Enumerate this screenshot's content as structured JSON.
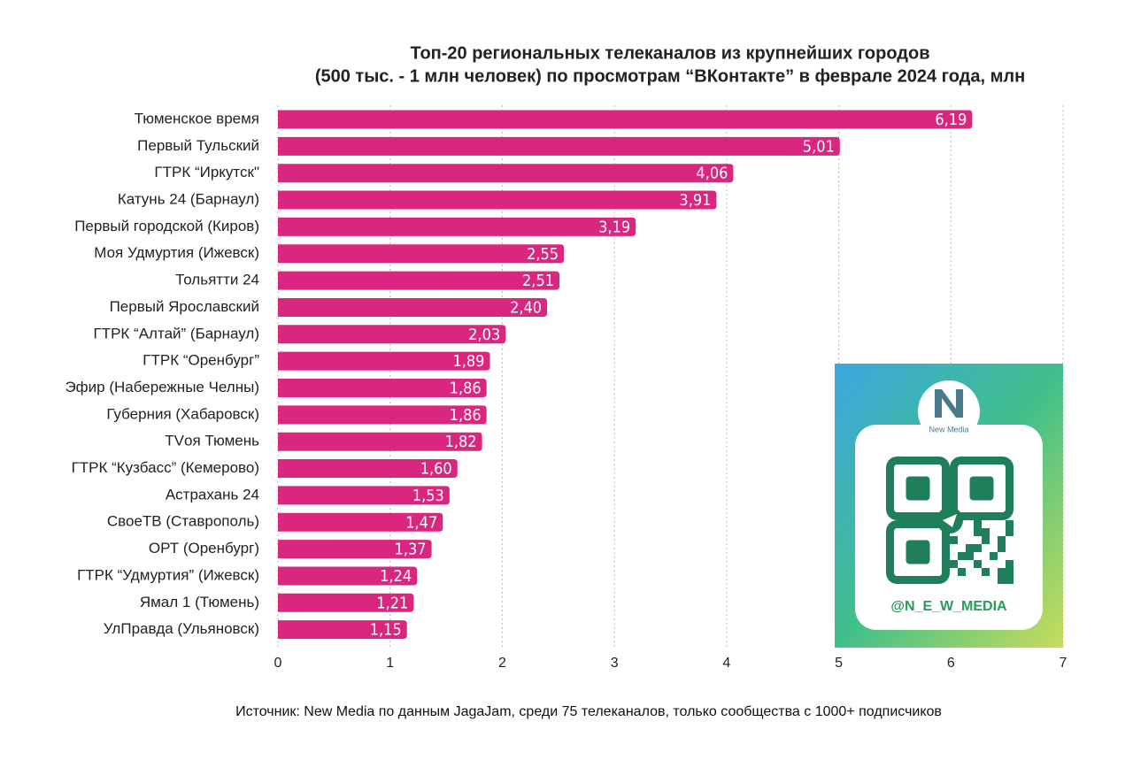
{
  "chart_data": {
    "type": "barh",
    "title": [
      "Топ-20 региональных телеканалов из крупнейших городов",
      "(500 тыс. - 1 млн человек) по просмотрам “ВКонтакте” в феврале 2024 года, млн"
    ],
    "categories": [
      "Тюменское время",
      "Первый Тульский",
      "ГТРК “Иркутск\"",
      "Катунь 24 (Барнаул)",
      "Первый городской (Киров)",
      "Моя Удмуртия (Ижевск)",
      "Тольятти 24",
      "Первый Ярославский",
      "ГТРК “Алтай” (Барнаул)",
      "ГТРК “Оренбург”",
      "Эфир (Набережные Челны)",
      "Губерния (Хабаровск)",
      "TVоя Тюмень",
      "ГТРК “Кузбасс” (Кемерово)",
      "Астрахань 24",
      "СвоеТВ (Ставрополь)",
      "ОРТ (Оренбург)",
      "ГТРК “Удмуртия” (Ижевск)",
      "Ямал 1 (Тюмень)",
      "УлПравда (Ульяновск)"
    ],
    "values": [
      6.19,
      5.01,
      4.06,
      3.91,
      3.19,
      2.55,
      2.51,
      2.4,
      2.03,
      1.89,
      1.86,
      1.86,
      1.82,
      1.6,
      1.53,
      1.47,
      1.37,
      1.24,
      1.21,
      1.15
    ],
    "value_labels": [
      "6,19",
      "5,01",
      "4,06",
      "3,91",
      "3,19",
      "2,55",
      "2,51",
      "2,40",
      "2,03",
      "1,89",
      "1,86",
      "1,86",
      "1,82",
      "1,60",
      "1,53",
      "1,47",
      "1,37",
      "1,24",
      "1,21",
      "1,15"
    ],
    "color": "#d9267f",
    "xlim": [
      0,
      7
    ],
    "xticks": [
      0,
      1,
      2,
      3,
      4,
      5,
      6,
      7
    ],
    "grid": true,
    "source": "Источник: New Media по данным JagaJam, среди 75 телеканалов, только сообщества с 1000+ подписчиков"
  },
  "overlay": {
    "brand": "New Media",
    "handle": "@N_E_W_MEDIA"
  }
}
